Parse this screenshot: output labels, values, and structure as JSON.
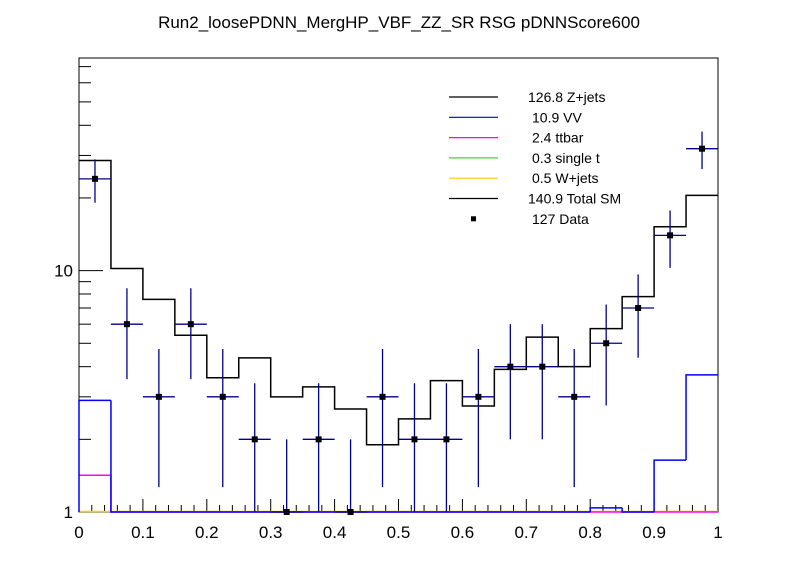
{
  "chart_data": {
    "type": "histogram",
    "title": "Run2_loosePDNN_MergHP_VBF_ZZ_SR RSG  pDNNScore600",
    "xlabel": "",
    "ylabel": "",
    "xlim": [
      0,
      1
    ],
    "ylim": [
      1,
      76
    ],
    "yscale": "log",
    "bin_edges": [
      0,
      0.05,
      0.1,
      0.15,
      0.2,
      0.25,
      0.3,
      0.35,
      0.4,
      0.45,
      0.5,
      0.55,
      0.6,
      0.65,
      0.7,
      0.75,
      0.8,
      0.85,
      0.9,
      0.95,
      1.0
    ],
    "x_tick_labels": [
      "0",
      "0.1",
      "0.2",
      "0.3",
      "0.4",
      "0.5",
      "0.6",
      "0.7",
      "0.8",
      "0.9",
      "1"
    ],
    "y_tick_labels": [
      "1",
      "10"
    ],
    "series": [
      {
        "name": "Total SM",
        "color": "#000000",
        "values": [
          28.6,
          10.2,
          7.6,
          5.4,
          3.6,
          4.35,
          3.0,
          3.3,
          2.67,
          1.9,
          2.43,
          3.5,
          2.75,
          3.9,
          5.3,
          4.0,
          5.75,
          7.8,
          15.2,
          20.5
        ]
      },
      {
        "name": "VV",
        "color": "#0000ff",
        "values": [
          2.9,
          0,
          0,
          0,
          0,
          0,
          0,
          0,
          0,
          0,
          0,
          0,
          0,
          0,
          0,
          0,
          1.04,
          0,
          1.64,
          3.7
        ]
      },
      {
        "name": "ttbar",
        "color": "#ff00ff",
        "values": [
          1.42,
          0,
          0,
          0,
          0,
          0,
          0,
          0,
          0,
          0,
          0,
          0,
          0,
          0,
          0,
          0,
          0,
          0,
          0,
          0
        ]
      },
      {
        "name": "Data",
        "color": "#000000",
        "error_color": "#00008b",
        "values": [
          24,
          6,
          3,
          6,
          3,
          2,
          1,
          2,
          1,
          3,
          2,
          2,
          3,
          4,
          4,
          3,
          5,
          7,
          14,
          32
        ]
      }
    ],
    "legend_position": "top-right",
    "legend": [
      {
        "label": "126.8 Z+jets",
        "color": "#000000",
        "style": "line"
      },
      {
        "label": "10.9 VV",
        "color": "#0000cc",
        "style": "line"
      },
      {
        "label": "2.4 ttbar",
        "color": "#ff00ff",
        "style": "line"
      },
      {
        "label": "0.3 single t",
        "color": "#33dd33",
        "style": "line"
      },
      {
        "label": "0.5 W+jets",
        "color": "#ffcc00",
        "style": "line"
      },
      {
        "label": "140.9 Total SM",
        "color": "#000000",
        "style": "line"
      },
      {
        "label": "127 Data",
        "color": "#000000",
        "style": "marker"
      }
    ]
  }
}
